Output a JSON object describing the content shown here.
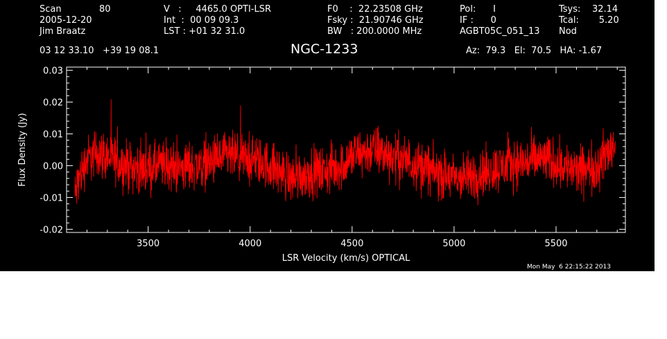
{
  "header": {
    "scan_label": "Scan",
    "scan_value": "80",
    "date": "2005-12-20",
    "observer": "Jim Braatz",
    "velocity": "V   :     4465.0 OPTI-LSR",
    "integration": "Int  :  00 09 09.3",
    "lst": "LST : +01 32 31.0",
    "f0": "F0    :  22.23508 GHz",
    "fsky": "Fsky :  21.90746 GHz",
    "bandwidth": "BW   : 200.0000 MHz",
    "pol": "Pol:      I",
    "if": "IF :      0",
    "project": "AGBT05C_051_13",
    "tsys": "Tsys:    32.14",
    "tcal": "Tcal:       5.20",
    "mode": "Nod",
    "coords": "03 12 33.10   +39 19 08.1",
    "source": "NGC-1233",
    "az_el_ha": "Az:  79.3   El:  70.5   HA: -1.67"
  },
  "timestamp": "Mon May  6 22:15:22 2013",
  "colors": {
    "background": "#000000",
    "axes": "#ffffff",
    "trace": "#ff0000"
  },
  "chart_data": {
    "type": "line",
    "title": "NGC-1233",
    "xlabel": "LSR Velocity (km/s) OPTICAL",
    "ylabel": "Flux Density (Jy)",
    "xlim": [
      3100,
      5840
    ],
    "ylim": [
      -0.021,
      0.031
    ],
    "xticks": [
      3500,
      4000,
      4500,
      5000,
      5500
    ],
    "xtick_labels": [
      "3500",
      "4000",
      "4500",
      "5000",
      "5500"
    ],
    "yticks": [
      -0.02,
      -0.01,
      0.0,
      0.01,
      0.02,
      0.03
    ],
    "ytick_labels": [
      "-0.02",
      "-0.01",
      "0.00",
      "0.01",
      "0.02",
      "0.03"
    ],
    "grid": false,
    "series": [
      {
        "name": "",
        "color": "#ff0000",
        "x": [
          3140,
          3160,
          3200,
          3250,
          3300,
          3350,
          3400,
          3450,
          3500,
          3550,
          3600,
          3650,
          3700,
          3750,
          3800,
          3850,
          3900,
          3950,
          4000,
          4050,
          4100,
          4150,
          4200,
          4250,
          4300,
          4350,
          4400,
          4450,
          4500,
          4550,
          4600,
          4650,
          4700,
          4750,
          4800,
          4850,
          4900,
          4950,
          5000,
          5050,
          5100,
          5150,
          5200,
          5250,
          5300,
          5350,
          5400,
          5450,
          5500,
          5550,
          5600,
          5650,
          5700,
          5750,
          5790
        ],
        "y": [
          -0.01,
          -0.004,
          0.002,
          0.004,
          0.003,
          0.001,
          0.0,
          -0.001,
          -0.001,
          0.0,
          0.0,
          -0.001,
          0.0,
          0.0,
          0.001,
          0.002,
          0.003,
          0.002,
          0.002,
          0.001,
          0.0,
          -0.002,
          -0.004,
          -0.003,
          -0.002,
          -0.002,
          -0.001,
          0.0,
          0.003,
          0.004,
          0.005,
          0.004,
          0.003,
          0.002,
          0.001,
          0.0,
          -0.002,
          -0.003,
          -0.004,
          -0.004,
          -0.003,
          -0.002,
          -0.001,
          0.0,
          0.001,
          0.001,
          0.002,
          0.002,
          0.001,
          0.0,
          -0.002,
          -0.001,
          0.0,
          0.004,
          0.007
        ]
      }
    ]
  }
}
